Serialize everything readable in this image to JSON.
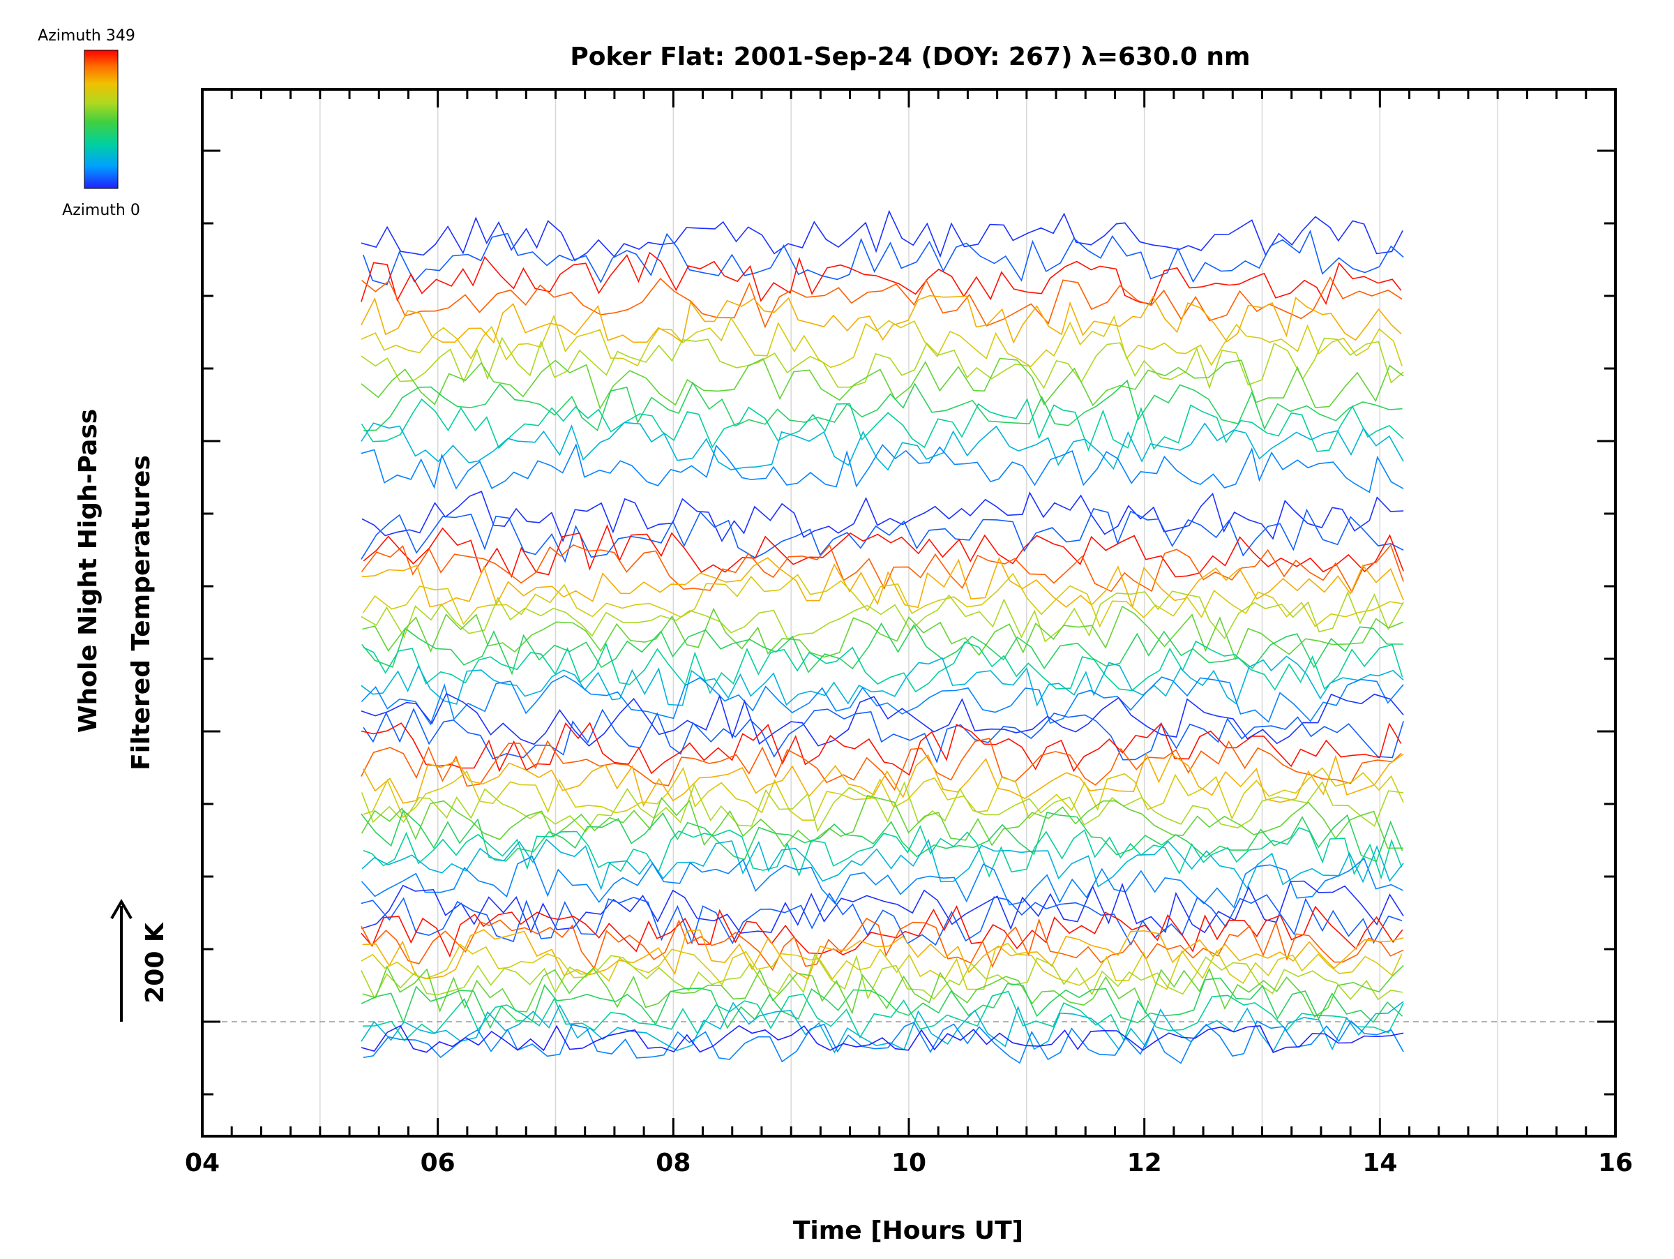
{
  "chart_data": {
    "type": "line",
    "title": "Poker Flat: 2001-Sep-24 (DOY: 267) λ=630.0 nm",
    "xlabel": "Time [Hours UT]",
    "ylabel_line1": "Whole Night High-Pass",
    "ylabel_line2": "Filtered Temperatures",
    "scale_label": "200 K",
    "colorbar": {
      "top_label": "Azimuth 349",
      "bottom_label": "Azimuth 0",
      "colors": [
        "#2020ff",
        "#00a0ff",
        "#00d0a0",
        "#40d040",
        "#b0d820",
        "#f0c000",
        "#ff7000",
        "#ff0000"
      ]
    },
    "xlim": [
      4,
      16
    ],
    "x_ticks": [
      "04",
      "06",
      "08",
      "10",
      "12",
      "14",
      "16"
    ],
    "x_tick_values": [
      4,
      6,
      8,
      10,
      12,
      14,
      16
    ],
    "x_range": [
      5.35,
      14.2
    ],
    "grid": "vertical lines at each hour",
    "baseline": "dashed line at lowest trace",
    "series_count": 48,
    "groups": 4,
    "azimuth_range": [
      0,
      349
    ]
  }
}
